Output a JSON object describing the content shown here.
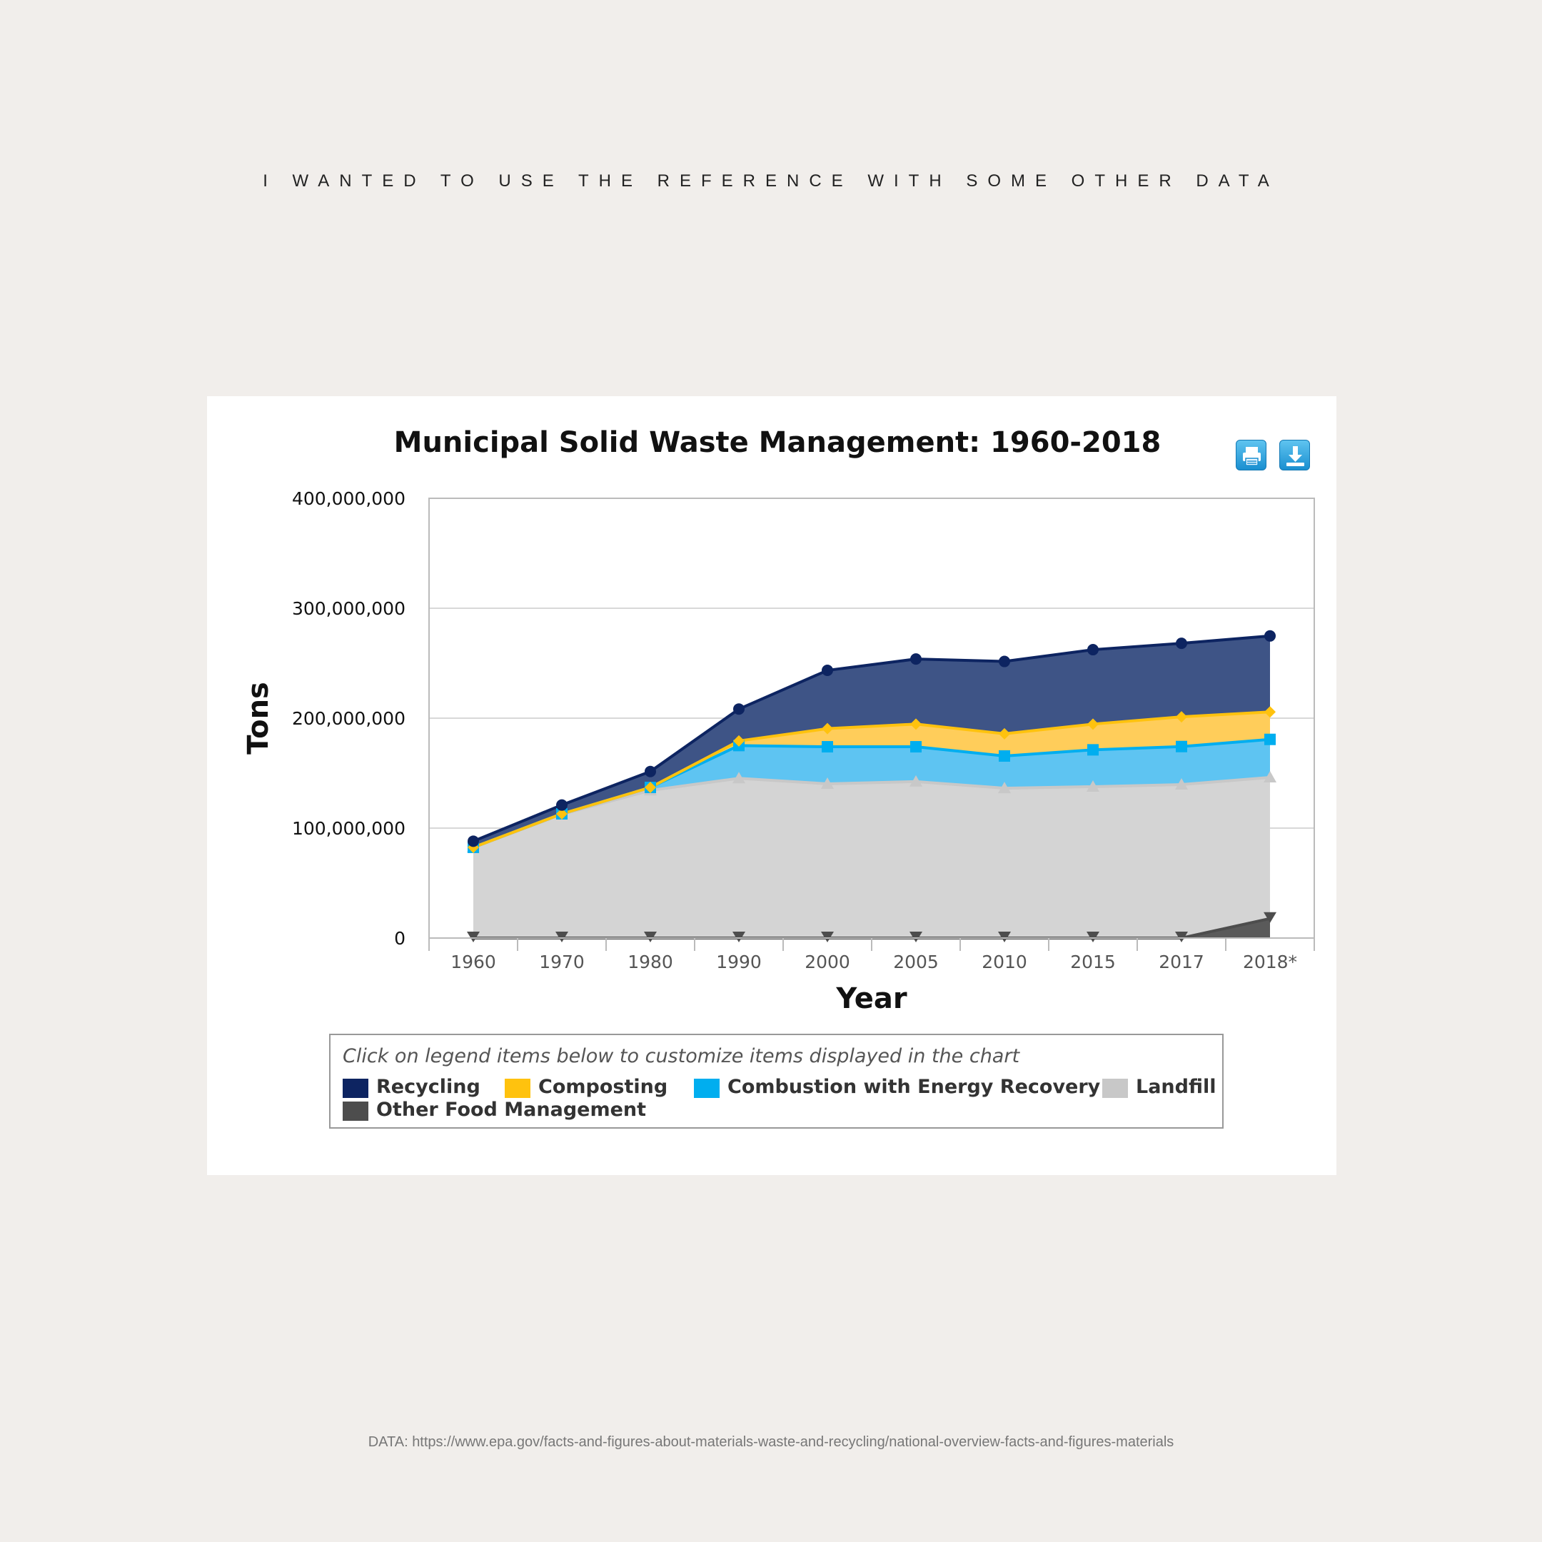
{
  "page": {
    "heading": "I WANTED TO USE THE REFERENCE WITH SOME OTHER DATA",
    "footer": "DATA: https://www.epa.gov/facts-and-figures-about-materials-waste-and-recycling/national-overview-facts-and-figures-materials"
  },
  "toolbar": {
    "print_icon": "printer-icon",
    "download_icon": "download-icon"
  },
  "legend": {
    "hint": "Click on legend items below to customize items displayed in the chart"
  },
  "chart_data": {
    "type": "area",
    "stacked": true,
    "title": "Municipal Solid Waste Management: 1960-2018",
    "xlabel": "Year",
    "ylabel": "Tons",
    "categories": [
      "1960",
      "1970",
      "1980",
      "1990",
      "2000",
      "2005",
      "2010",
      "2015",
      "2017",
      "2018*"
    ],
    "ylim": [
      0,
      400000000
    ],
    "yticks": [
      0,
      100000000,
      200000000,
      300000000,
      400000000
    ],
    "ytick_labels": [
      "0",
      "100,000,000",
      "200,000,000",
      "300,000,000",
      "400,000,000"
    ],
    "grid": true,
    "legend_position": "bottom",
    "series": [
      {
        "name": "Other Food Management",
        "color": "#4d4d4d",
        "marker": "triangle-down",
        "values": [
          0,
          0,
          0,
          0,
          0,
          0,
          0,
          0,
          0,
          17700000
        ]
      },
      {
        "name": "Landfill",
        "color": "#c8c8c8",
        "marker": "triangle",
        "values": [
          82500000,
          112600000,
          134300000,
          145300000,
          140300000,
          142300000,
          136300000,
          137700000,
          139600000,
          146100000
        ]
      },
      {
        "name": "Combustion with Energy Recovery",
        "color": "#00aeef",
        "marker": "square",
        "values": [
          0,
          400000,
          2700000,
          29800000,
          33700000,
          31700000,
          29300000,
          33500000,
          34600000,
          34600000
        ]
      },
      {
        "name": "Composting",
        "color": "#ffc20e",
        "marker": "diamond",
        "values": [
          0,
          0,
          0,
          4200000,
          16500000,
          20600000,
          20200000,
          23400000,
          27000000,
          25000000
        ]
      },
      {
        "name": "Recycling",
        "color": "#0d2461",
        "marker": "circle",
        "values": [
          5600000,
          8000000,
          14500000,
          29000000,
          53000000,
          59200000,
          65800000,
          67700000,
          66900000,
          69100000
        ]
      }
    ]
  }
}
